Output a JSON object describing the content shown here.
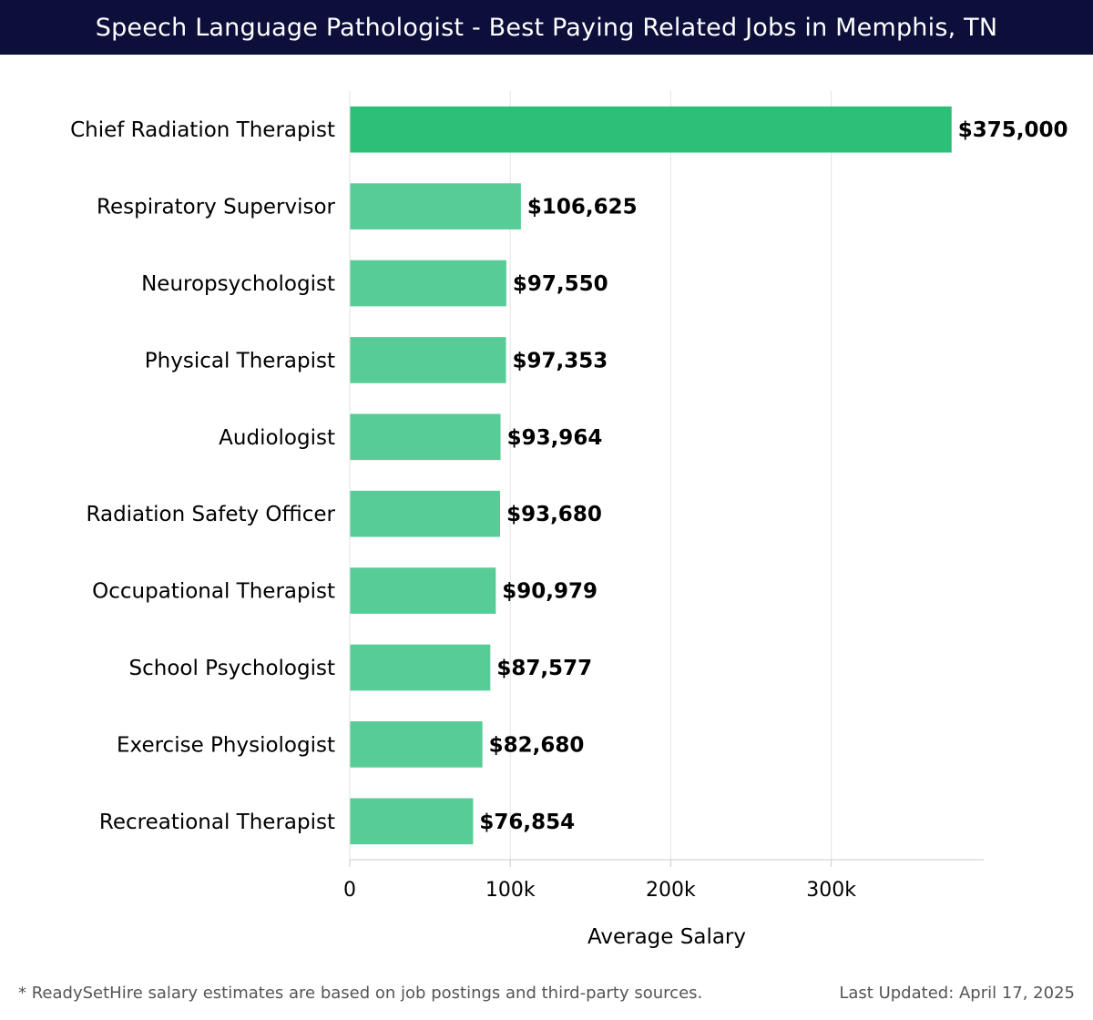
{
  "header": {
    "title": "Speech Language Pathologist - Best Paying Related Jobs in Memphis, TN"
  },
  "chart_data": {
    "type": "bar",
    "orientation": "horizontal",
    "title": "Speech Language Pathologist - Best Paying Related Jobs in Memphis, TN",
    "xlabel": "Average Salary",
    "ylabel": "",
    "categories": [
      "Chief Radiation Therapist",
      "Respiratory Supervisor",
      "Neuropsychologist",
      "Physical Therapist",
      "Audiologist",
      "Radiation Safety Officer",
      "Occupational Therapist",
      "School Psychologist",
      "Exercise Physiologist",
      "Recreational Therapist"
    ],
    "values": [
      375000,
      106625,
      97550,
      97353,
      93964,
      93680,
      90979,
      87577,
      82680,
      76854
    ],
    "value_labels": [
      "$375,000",
      "$106,625",
      "$97,550",
      "$97,353",
      "$93,964",
      "$93,680",
      "$90,979",
      "$87,577",
      "$82,680",
      "$76,854"
    ],
    "xlim": [
      0,
      395000
    ],
    "x_ticks": [
      0,
      100000,
      200000,
      300000
    ],
    "x_tick_labels": [
      "0",
      "100k",
      "200k",
      "300k"
    ],
    "grid": true,
    "legend": "none",
    "colors": {
      "highlight_bar": "#2bbf78",
      "bar": "#57cc96",
      "grid": "#e3e3e3",
      "axis": "#cccccc",
      "text": "#000000"
    }
  },
  "footer": {
    "note": "* ReadySetHire salary estimates are based on job postings and third-party sources.",
    "updated": "Last Updated: April 17, 2025"
  }
}
